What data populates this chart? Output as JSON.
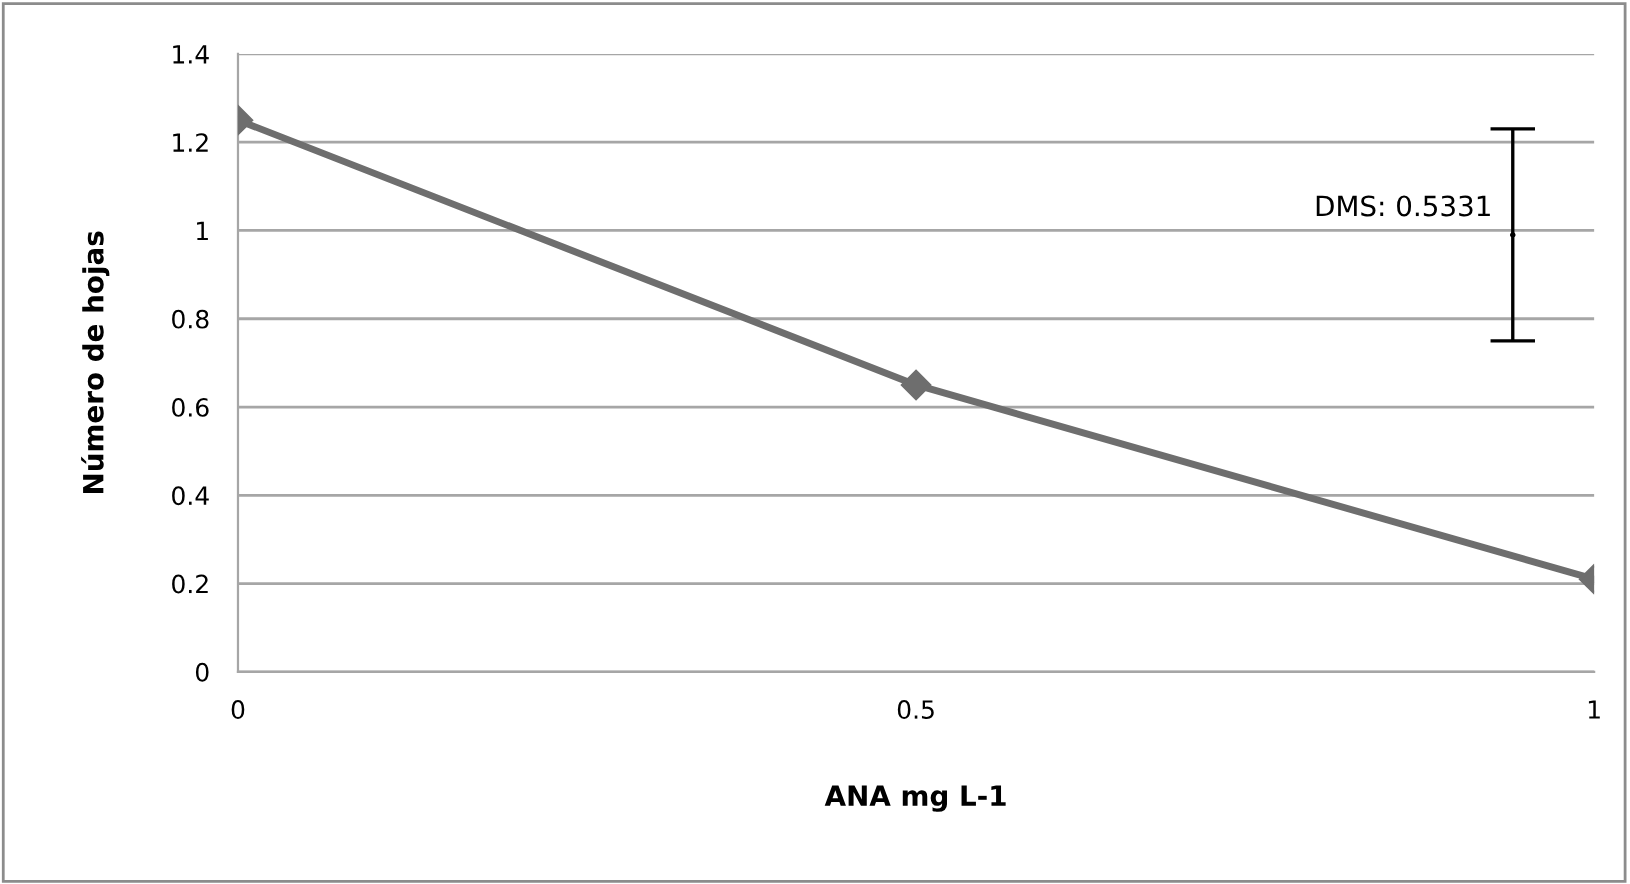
{
  "chart_data": {
    "type": "line",
    "xlabel": "ANA mg L-1",
    "ylabel": "Número de hojas",
    "x": [
      0,
      0.5,
      1
    ],
    "series": [
      {
        "color": "#6e6e6e",
        "values": [
          1.25,
          0.65,
          0.21
        ],
        "marker": "diamond"
      },
      {
        "type": "scatter",
        "color": "#000000",
        "x": [
          0.94
        ],
        "values": [
          0.99
        ],
        "errors": [
          0.24
        ],
        "marker": "none"
      }
    ],
    "annotations": [
      {
        "text": "DMS: 0.5331",
        "x": 0.94,
        "y": 1.05
      }
    ],
    "xlim": [
      0,
      1
    ],
    "xticks": [
      0,
      0.5,
      1
    ],
    "ylim": [
      0,
      1.4
    ],
    "yticks": [
      0,
      0.2,
      0.4,
      0.6,
      0.8,
      1,
      1.2,
      1.4
    ],
    "grid": "y",
    "legend": false
  }
}
